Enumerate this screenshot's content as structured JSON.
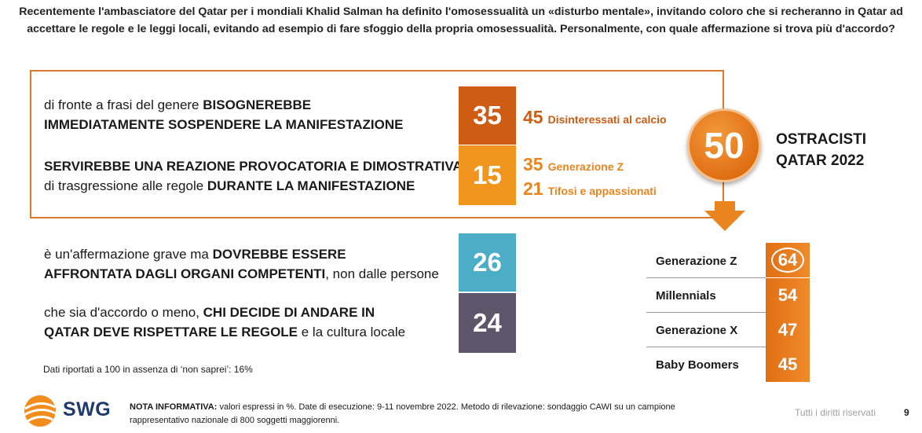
{
  "question": "Recentemente l'ambasciatore del Qatar per i mondiali Khalid Salman ha definito l'omosessualità un «disturbo mentale», invitando coloro che si recheranno in Qatar ad accettare le regole e le leggi locali, evitando ad esempio di fare sfoggio della propria omosessualità. Personalmente, con quale affermazione si trova più d'accordo?",
  "statements": [
    {
      "line1_pre": "di fronte a frasi del genere ",
      "line1_bold": "BISOGNEREBBE",
      "line2_bold": "IMMEDIATAMENTE SOSPENDERE LA MANIFESTAZIONE",
      "line2_post": ""
    },
    {
      "line1_pre": "",
      "line1_bold": "SERVIREBBE UNA REAZIONE PROVOCATORIA E DIMOSTRATIVA,",
      "line2_pre": "di trasgressione alle regole ",
      "line2_bold": "DURANTE LA MANIFESTAZIONE"
    },
    {
      "line1_pre": "è un'affermazione grave ma ",
      "line1_bold": "DOVREBBE ESSERE",
      "line2_bold": "AFFRONTATA DAGLI ORGANI COMPETENTI",
      "line2_post": ", non dalle persone"
    },
    {
      "line1_pre": "che sia d'accordo o meno, ",
      "line1_bold": "CHI DECIDE DI ANDARE IN",
      "line2_bold": "QATAR DEVE RISPETTARE LE REGOLE",
      "line2_post": " e la cultura locale"
    }
  ],
  "subgroups": [
    {
      "value": "45",
      "label": "Disinteressati al calcio"
    },
    {
      "value": "35",
      "label": "Generazione Z"
    },
    {
      "value": "21",
      "label": "Tifosi e appassionati"
    }
  ],
  "total_label_line1": "OSTRACISTI",
  "total_label_line2": "QATAR 2022",
  "total_value": "50",
  "generations_labels": [
    "Generazione Z",
    "Millennials",
    "Generazione X",
    "Baby Boomers"
  ],
  "generations_values": [
    "64",
    "54",
    "47",
    "45"
  ],
  "note_small": "Dati riportati a 100 in assenza di ‘non saprei’: 16%",
  "footer_bold": "NOTA INFORMATIVA:",
  "footer_line1": " valori espressi in %. Date di esecuzione: 9-11 novembre 2022. Metodo di rilevazione: sondaggio CAWI su un campione",
  "footer_line2": "rappresentativo nazionale di 800 soggetti maggiorenni.",
  "rights": "Tutti i diritti riservati",
  "page_number": "9",
  "logo": "SWG",
  "colors": {
    "orange_dark": "#cf5c13",
    "orange": "#f0951e",
    "blue": "#4badc6",
    "slate": "#5d566a",
    "accent": "#e8851e"
  },
  "chart_data": {
    "type": "bar",
    "categories": [
      "di fronte a frasi del genere BISOGNEREBBE IMMEDIATAMENTE SOSPENDERE LA MANIFESTAZIONE",
      "SERVIREBBE UNA REAZIONE PROVOCATORIA E DIMOSTRATIVA, di trasgressione alle regole DURANTE LA MANIFESTAZIONE",
      "è un'affermazione grave ma DOVREBBE ESSERE AFFRONTATA DAGLI ORGANI COMPETENTI, non dalle persone",
      "che sia d'accordo o meno, CHI DECIDE DI ANDARE IN QATAR DEVE RISPETTARE LE REGOLE e la cultura locale"
    ],
    "values": [
      35,
      15,
      26,
      24
    ],
    "total_ostracisti": 50,
    "generations": {
      "categories": [
        "Generazione Z",
        "Millennials",
        "Generazione X",
        "Baby Boomers"
      ],
      "values": [
        64,
        54,
        47,
        45
      ]
    },
    "subgroups": {
      "categories": [
        "Disinteressati al calcio",
        "Generazione Z",
        "Tifosi e appassionati"
      ],
      "values": [
        45,
        35,
        21
      ]
    }
  }
}
